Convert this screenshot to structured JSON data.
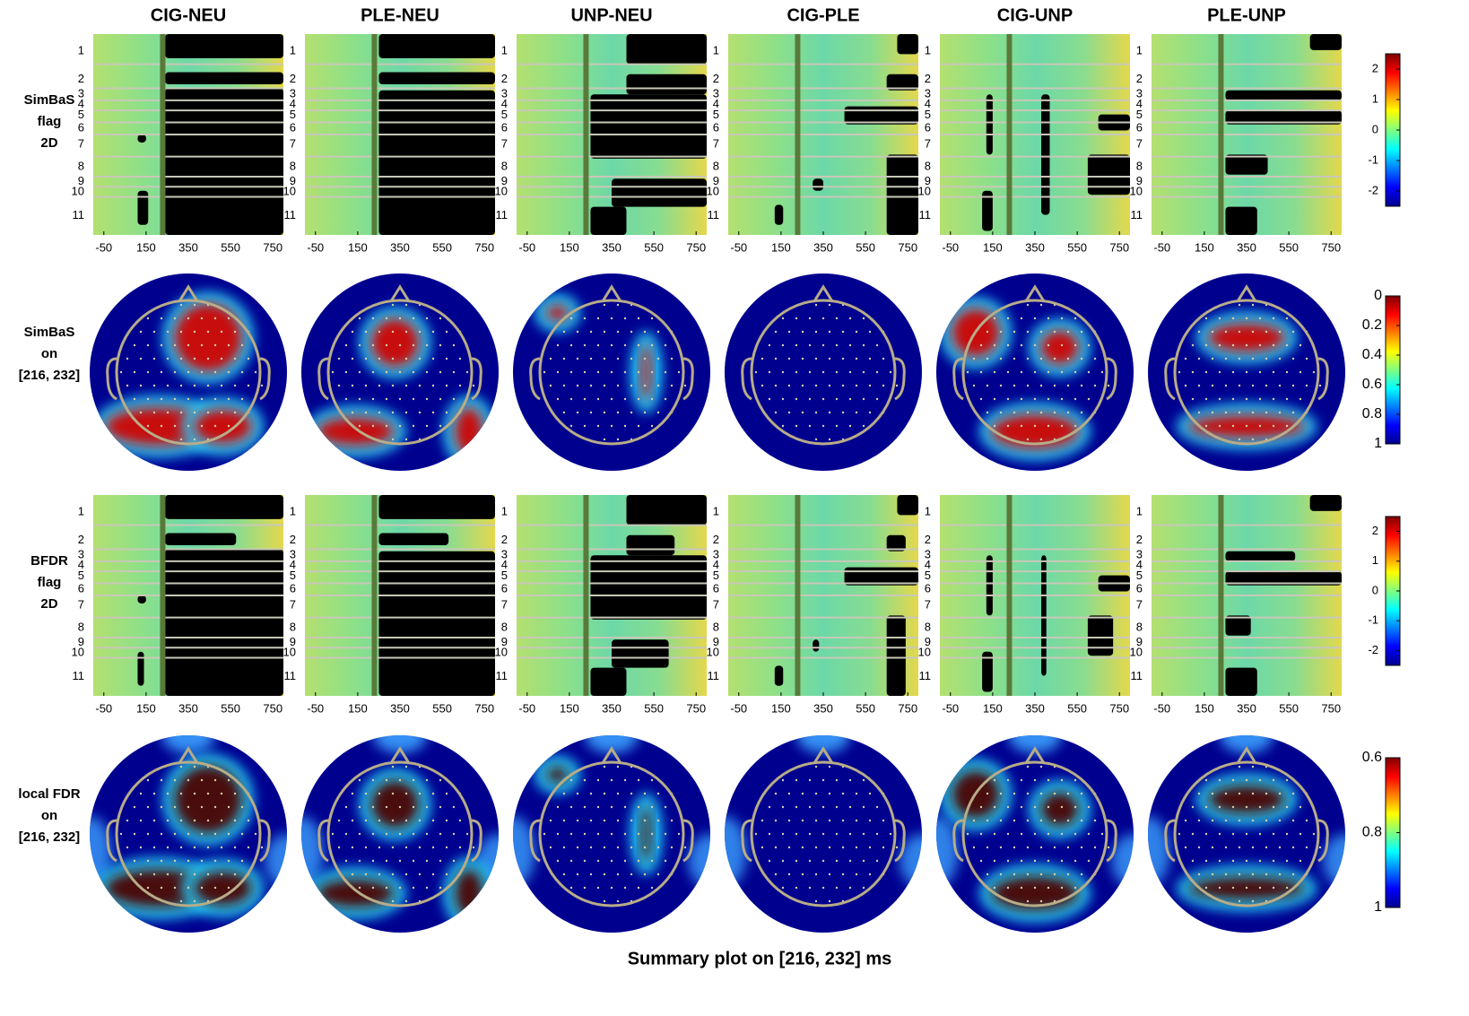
{
  "columns": [
    "CIG-NEU",
    "PLE-NEU",
    "UNP-NEU",
    "CIG-PLE",
    "CIG-UNP",
    "PLE-UNP"
  ],
  "rows": [
    {
      "kind": "heatmap",
      "label": [
        "SimBaS",
        "flag",
        "2D"
      ]
    },
    {
      "kind": "topo",
      "label": [
        "SimBaS",
        "on",
        "[216, 232]"
      ]
    },
    {
      "kind": "heatmap",
      "label": [
        "BFDR",
        "flag",
        "2D"
      ]
    },
    {
      "kind": "topo",
      "label": [
        "local FDR",
        "on",
        "[216, 232]"
      ]
    }
  ],
  "heatmap_axis": {
    "xlim": [
      -100,
      800
    ],
    "xticks": [
      -50,
      150,
      350,
      550,
      750
    ],
    "regions": [
      1,
      2,
      3,
      4,
      5,
      6,
      7,
      8,
      9,
      10,
      11
    ]
  },
  "colorbars": [
    {
      "lim": [
        -2.5,
        2.5
      ],
      "invert": false,
      "ticks": [
        2,
        1,
        0,
        -1,
        -2
      ]
    },
    {
      "lim": [
        0,
        1
      ],
      "invert": true,
      "ticks": [
        0,
        0.2,
        0.4,
        0.6,
        0.8,
        1
      ]
    },
    {
      "lim": [
        -2.5,
        2.5
      ],
      "invert": false,
      "ticks": [
        2,
        1,
        0,
        -1,
        -2
      ]
    },
    {
      "lim": [
        0.6,
        1
      ],
      "invert": true,
      "ticks": [
        0.6,
        0.8,
        1
      ]
    }
  ],
  "caption": "Summary plot on [216, 232] ms"
}
